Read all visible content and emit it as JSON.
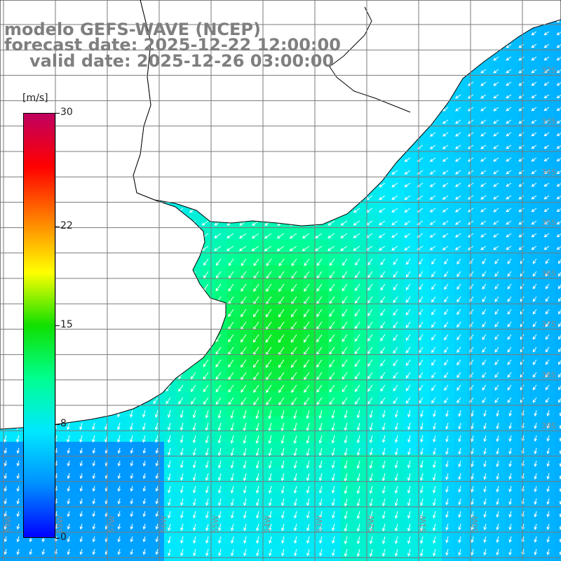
{
  "header": {
    "line1": "modelo GEFS-WAVE (NCEP)",
    "line2": "forecast date: 2025-12-22 12:00:00",
    "line3": "valid date: 2025-12-26 03:00:00"
  },
  "colorbar": {
    "unit": "[m/s]",
    "ticks": [
      {
        "label": "30",
        "value": 30
      },
      {
        "label": "22",
        "value": 22
      },
      {
        "label": "15",
        "value": 15
      },
      {
        "label": "8",
        "value": 8
      },
      {
        "label": "0",
        "value": 0
      }
    ],
    "range": [
      0,
      30
    ],
    "colors": [
      "#0000ff",
      "#0090ff",
      "#00e8ff",
      "#00ff90",
      "#10e000",
      "#ffff00",
      "#ff8000",
      "#ff0000",
      "#c00060"
    ]
  },
  "map": {
    "variable": "wind speed and direction",
    "land_color": "#ffffff",
    "coast_color": "#000000",
    "grid_color": "#7a7a7a",
    "arrow_color": "#ffffff",
    "lat_labels": [
      "32S",
      "33S",
      "34S",
      "35S",
      "36S",
      "37S",
      "38S",
      "39S"
    ],
    "lon_labels": [
      "59W",
      "58W",
      "57W",
      "56W",
      "55W",
      "54W",
      "53W",
      "52W",
      "51W",
      "50W"
    ]
  }
}
